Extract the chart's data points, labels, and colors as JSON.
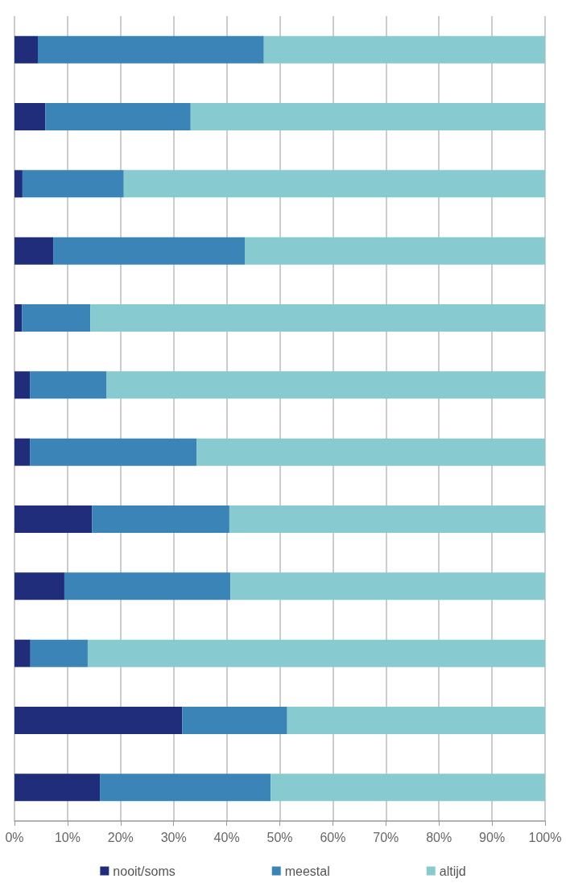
{
  "chart_data": {
    "type": "bar",
    "orientation": "horizontal",
    "stacked": true,
    "categories": [
      null,
      null,
      null,
      null,
      null,
      null,
      null,
      null,
      null,
      null,
      null,
      null
    ],
    "series": [
      {
        "name": "nooit/soms",
        "color": "#1f2d7b",
        "values": [
          4.4,
          5.8,
          1.5,
          7.3,
          1.4,
          2.9,
          2.9,
          14.6,
          9.4,
          3.0,
          31.6,
          16.1
        ]
      },
      {
        "name": "meestal",
        "color": "#3a84b8",
        "values": [
          42.6,
          27.4,
          19.1,
          36.1,
          12.9,
          14.4,
          31.4,
          25.9,
          31.3,
          10.8,
          19.8,
          32.2
        ]
      },
      {
        "name": "altijd",
        "color": "#87cbd0",
        "values": [
          53.0,
          66.8,
          79.4,
          56.6,
          85.7,
          82.7,
          65.7,
          59.5,
          59.3,
          86.2,
          48.6,
          51.7
        ]
      }
    ],
    "xlim": [
      0,
      100
    ],
    "xticks": [
      {
        "value": 0,
        "label": "0%"
      },
      {
        "value": 10,
        "label": "10%"
      },
      {
        "value": 20,
        "label": "20%"
      },
      {
        "value": 30,
        "label": "30%"
      },
      {
        "value": 40,
        "label": "40%"
      },
      {
        "value": 50,
        "label": "50%"
      },
      {
        "value": 60,
        "label": "60%"
      },
      {
        "value": 70,
        "label": "70%"
      },
      {
        "value": 80,
        "label": "80%"
      },
      {
        "value": 90,
        "label": "90%"
      },
      {
        "value": 100,
        "label": "100%"
      }
    ],
    "grid": "x",
    "legend": "bottom"
  }
}
